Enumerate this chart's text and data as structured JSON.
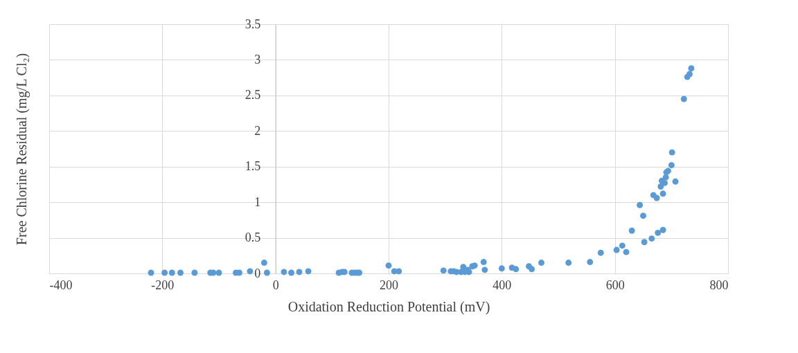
{
  "chart_data": {
    "type": "scatter",
    "xlabel": "Oxidation Reduction Potential (mV)",
    "ylabel": "Free Chlorine Residual (mg/L Cl₂)",
    "xlim": [
      -400,
      800
    ],
    "xticks": [
      -400,
      -200,
      0,
      200,
      400,
      600,
      800
    ],
    "ylim": [
      0,
      3.5
    ],
    "yticks": [
      0,
      0.5,
      1,
      1.5,
      2,
      2.5,
      3,
      3.5
    ],
    "grid": true,
    "marker": "circle",
    "series": [
      {
        "color": "#5b9bd5",
        "x": [
          -220,
          -196,
          -183,
          -168,
          -143,
          -115,
          -110,
          -100,
          -70,
          -64,
          -45,
          -20,
          -15,
          15,
          28,
          42,
          58,
          112,
          118,
          122,
          135,
          140,
          145,
          148,
          200,
          210,
          218,
          297,
          310,
          315,
          320,
          328,
          332,
          335,
          340,
          342,
          348,
          352,
          368,
          370,
          400,
          418,
          425,
          448,
          453,
          470,
          518,
          556,
          575,
          603,
          613,
          620,
          630,
          644,
          650,
          652,
          665,
          668,
          674,
          676,
          681,
          683,
          685,
          685,
          688,
          690,
          691,
          694,
          700,
          701,
          707,
          722,
          728,
          732,
          735
        ],
        "values": [
          0.01,
          0.01,
          0.01,
          0.01,
          0.01,
          0.01,
          0.01,
          0.01,
          0.01,
          0.01,
          0.03,
          0.15,
          0.01,
          0.02,
          0.01,
          0.02,
          0.03,
          0.01,
          0.02,
          0.02,
          0.01,
          0.01,
          0.01,
          0.01,
          0.11,
          0.03,
          0.03,
          0.04,
          0.03,
          0.03,
          0.02,
          0.02,
          0.09,
          0.02,
          0.05,
          0.02,
          0.1,
          0.11,
          0.16,
          0.05,
          0.07,
          0.08,
          0.06,
          0.1,
          0.06,
          0.15,
          0.15,
          0.16,
          0.29,
          0.33,
          0.39,
          0.3,
          0.6,
          0.96,
          0.81,
          0.44,
          0.49,
          1.1,
          1.06,
          0.57,
          1.22,
          1.3,
          0.61,
          1.12,
          1.27,
          1.35,
          1.42,
          1.44,
          1.52,
          1.7,
          1.29,
          2.45,
          2.76,
          2.8,
          2.88
        ]
      }
    ]
  }
}
